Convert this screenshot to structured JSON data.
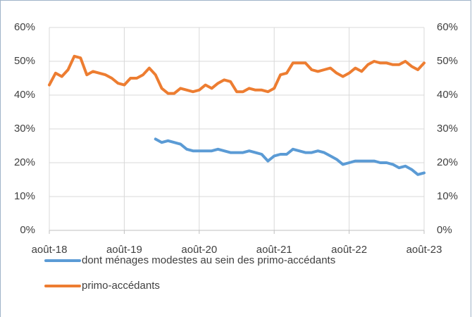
{
  "chart_data": {
    "type": "line",
    "categories": [
      "août-18",
      null,
      null,
      null,
      null,
      null,
      null,
      null,
      null,
      null,
      null,
      null,
      "août-19",
      null,
      null,
      null,
      null,
      null,
      null,
      null,
      null,
      null,
      null,
      null,
      "août-20",
      null,
      null,
      null,
      null,
      null,
      null,
      null,
      null,
      null,
      null,
      null,
      "août-21",
      null,
      null,
      null,
      null,
      null,
      null,
      null,
      null,
      null,
      null,
      null,
      "août-22",
      null,
      null,
      null,
      null,
      null,
      null,
      null,
      null,
      null,
      null,
      null,
      "août-23"
    ],
    "series": [
      {
        "name": "dont ménages modestes au sein des primo-accédants",
        "color": "#5b9bd5",
        "values": [
          null,
          null,
          null,
          null,
          null,
          null,
          null,
          null,
          null,
          null,
          null,
          null,
          null,
          null,
          null,
          null,
          null,
          27,
          26,
          26.5,
          26,
          25.5,
          24,
          23.5,
          23.5,
          23.5,
          23.5,
          24,
          23.5,
          23,
          23,
          23,
          23.5,
          23,
          22.5,
          20.5,
          22,
          22.5,
          22.5,
          24,
          23.5,
          23,
          23,
          23.5,
          23,
          22,
          21,
          19.5,
          20,
          20.5,
          20.5,
          20.5,
          20.5,
          20,
          20,
          19.5,
          18.5,
          19,
          18,
          16.5,
          17
        ]
      },
      {
        "name": "primo-accédants",
        "color": "#ed7d31",
        "values": [
          43,
          46.5,
          45.5,
          47.5,
          51.5,
          51,
          46,
          47,
          46.5,
          46,
          45,
          43.5,
          43,
          45,
          45,
          46,
          48,
          46,
          42,
          40.5,
          40.5,
          42,
          41.5,
          41,
          41.5,
          43,
          42,
          43.5,
          44.5,
          44,
          41,
          41,
          42,
          41.5,
          41.5,
          41,
          42,
          46,
          46.5,
          49.5,
          49.5,
          49.5,
          47.5,
          47,
          47.5,
          48,
          46.5,
          45.5,
          46.5,
          48,
          47,
          49,
          50,
          49.5,
          49.5,
          49,
          49,
          50,
          48.5,
          47.5,
          49.5
        ]
      }
    ],
    "ylim": [
      0,
      60
    ],
    "yticks": [
      {
        "value": 0,
        "label": "0%"
      },
      {
        "value": 10,
        "label": "10%"
      },
      {
        "value": 20,
        "label": "20%"
      },
      {
        "value": 30,
        "label": "30%"
      },
      {
        "value": 40,
        "label": "40%"
      },
      {
        "value": 50,
        "label": "50%"
      },
      {
        "value": 60,
        "label": "60%"
      }
    ],
    "y2lim": [
      0,
      60
    ],
    "y2ticks": [
      {
        "value": 0,
        "label": "0%"
      },
      {
        "value": 10,
        "label": "10%"
      },
      {
        "value": 20,
        "label": "20%"
      },
      {
        "value": 30,
        "label": "30%"
      },
      {
        "value": 40,
        "label": "40%"
      },
      {
        "value": 50,
        "label": "50%"
      },
      {
        "value": 60,
        "label": "60%"
      }
    ],
    "grid": true,
    "legend": "bottom"
  }
}
